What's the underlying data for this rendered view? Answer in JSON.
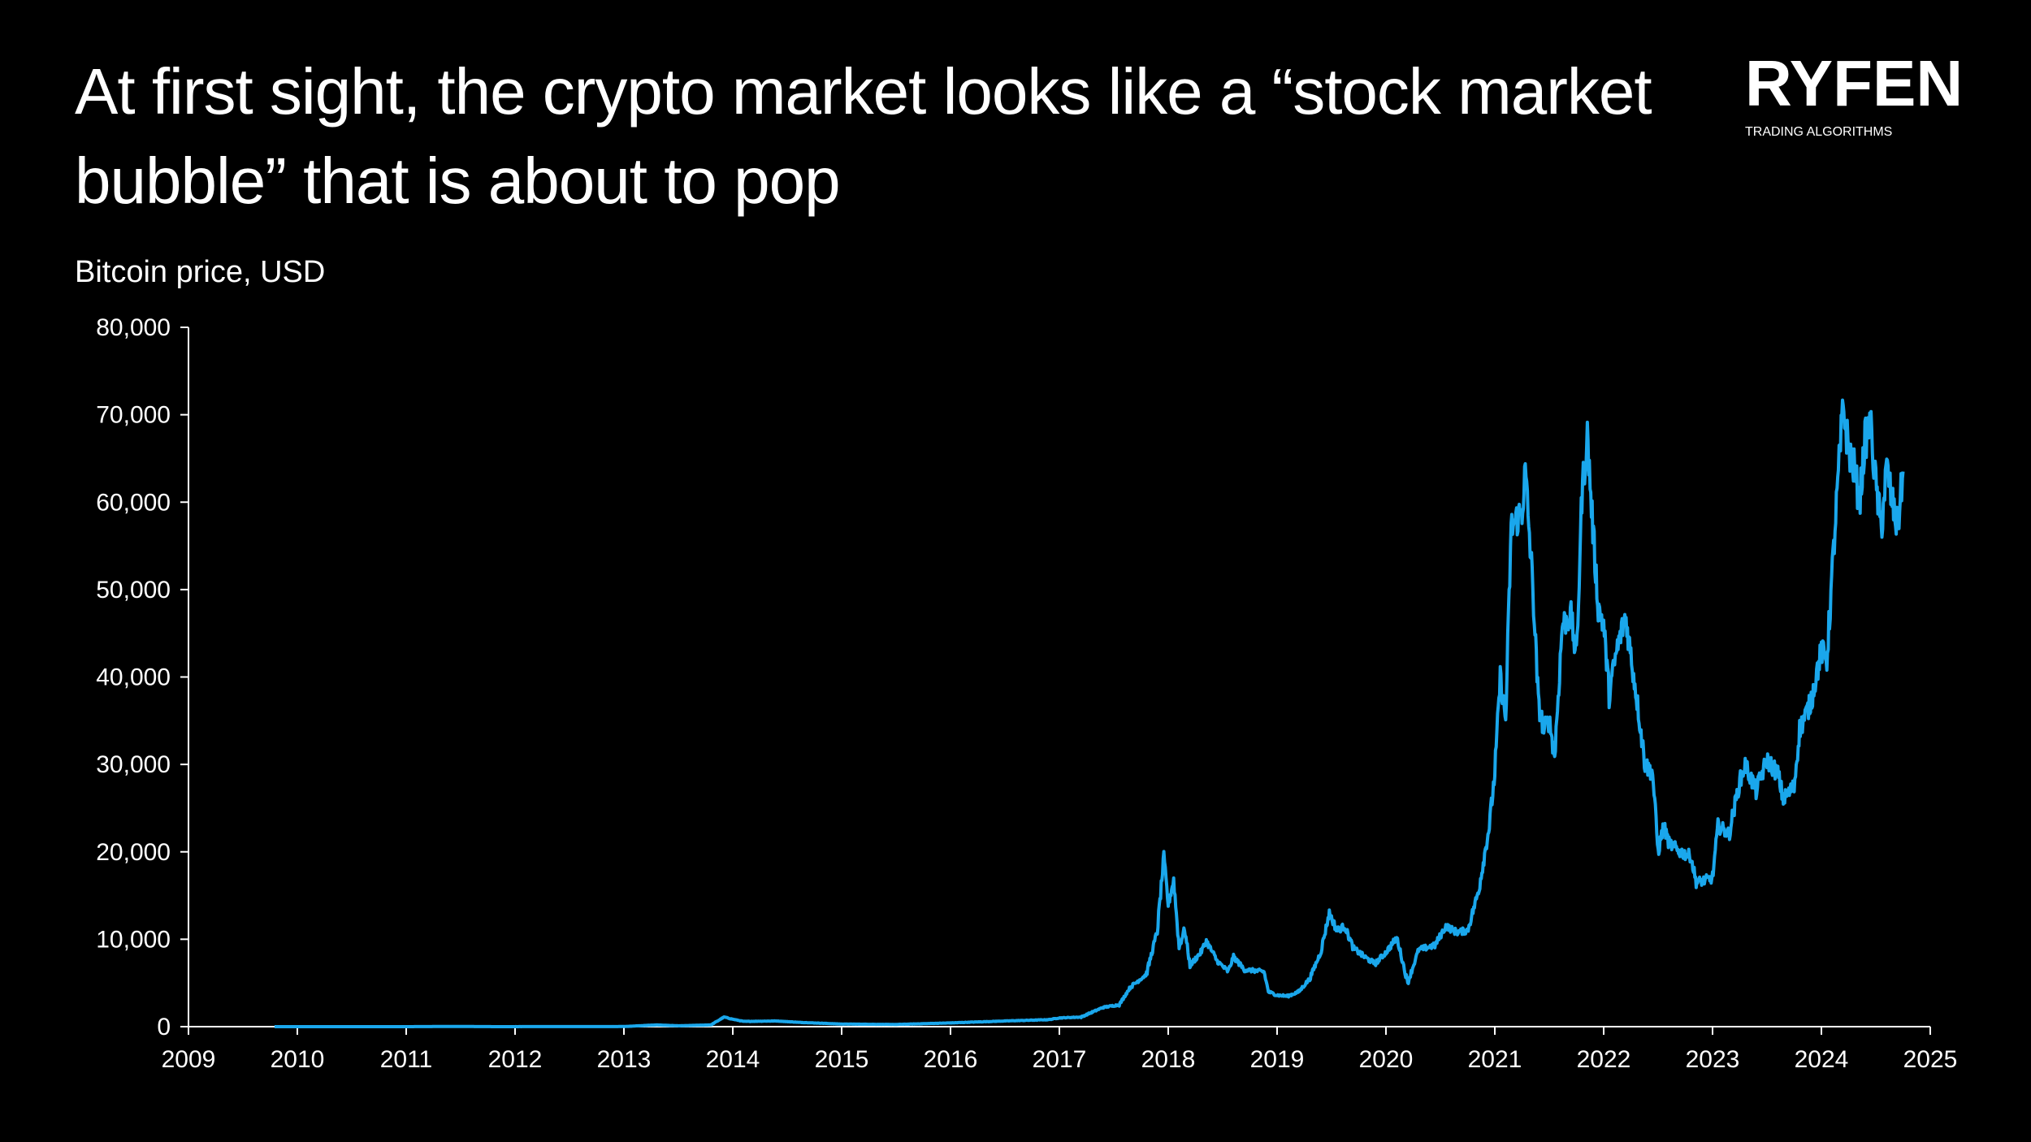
{
  "header": {
    "title": "At first sight, the crypto market looks like a “stock market bubble” that is about to pop"
  },
  "logo": {
    "name": "RYFEN",
    "tagline": "TRADING ALGORITHMS"
  },
  "colors": {
    "background": "#000000",
    "text": "#ffffff",
    "series": "#1aa7ec"
  },
  "chart_data": {
    "type": "line",
    "title": "At first sight, the crypto market looks like a “stock market bubble” that is about to pop",
    "subtitle": "Bitcoin price, USD",
    "xlabel": "",
    "ylabel": "",
    "xlim": [
      2009,
      2025
    ],
    "ylim": [
      0,
      80000
    ],
    "x_ticks": [
      2009,
      2010,
      2011,
      2012,
      2013,
      2014,
      2015,
      2016,
      2017,
      2018,
      2019,
      2020,
      2021,
      2022,
      2023,
      2024,
      2025
    ],
    "y_ticks": [
      0,
      10000,
      20000,
      30000,
      40000,
      50000,
      60000,
      70000,
      80000
    ],
    "x_tick_labels": [
      "2009",
      "2010",
      "2011",
      "2012",
      "2013",
      "2014",
      "2015",
      "2016",
      "2017",
      "2018",
      "2019",
      "2020",
      "2021",
      "2022",
      "2023",
      "2024",
      "2025"
    ],
    "y_tick_labels": [
      "0",
      "10,000",
      "20,000",
      "30,000",
      "40,000",
      "50,000",
      "60,000",
      "70,000",
      "80,000"
    ],
    "grid": false,
    "legend": "none",
    "series": [
      {
        "color": "#1aa7ec",
        "points": [
          [
            2009.79,
            0
          ],
          [
            2010.5,
            0
          ],
          [
            2011.0,
            1
          ],
          [
            2011.45,
            25
          ],
          [
            2011.8,
            3
          ],
          [
            2012.5,
            8
          ],
          [
            2013.0,
            15
          ],
          [
            2013.3,
            200
          ],
          [
            2013.5,
            100
          ],
          [
            2013.8,
            200
          ],
          [
            2013.92,
            1100
          ],
          [
            2014.0,
            850
          ],
          [
            2014.1,
            600
          ],
          [
            2014.4,
            650
          ],
          [
            2014.6,
            500
          ],
          [
            2015.0,
            300
          ],
          [
            2015.5,
            250
          ],
          [
            2016.0,
            430
          ],
          [
            2016.5,
            650
          ],
          [
            2016.9,
            800
          ],
          [
            2017.0,
            1000
          ],
          [
            2017.2,
            1100
          ],
          [
            2017.4,
            2200
          ],
          [
            2017.55,
            2500
          ],
          [
            2017.65,
            4500
          ],
          [
            2017.8,
            6000
          ],
          [
            2017.9,
            11000
          ],
          [
            2017.96,
            19400
          ],
          [
            2018.0,
            14000
          ],
          [
            2018.05,
            16800
          ],
          [
            2018.1,
            9000
          ],
          [
            2018.15,
            11200
          ],
          [
            2018.2,
            7000
          ],
          [
            2018.3,
            8500
          ],
          [
            2018.35,
            9800
          ],
          [
            2018.45,
            7500
          ],
          [
            2018.55,
            6300
          ],
          [
            2018.6,
            8000
          ],
          [
            2018.7,
            6500
          ],
          [
            2018.8,
            6400
          ],
          [
            2018.88,
            6300
          ],
          [
            2018.92,
            4000
          ],
          [
            2019.0,
            3600
          ],
          [
            2019.1,
            3500
          ],
          [
            2019.2,
            4000
          ],
          [
            2019.3,
            5500
          ],
          [
            2019.4,
            8500
          ],
          [
            2019.48,
            13000
          ],
          [
            2019.55,
            11000
          ],
          [
            2019.62,
            11500
          ],
          [
            2019.7,
            9000
          ],
          [
            2019.8,
            8000
          ],
          [
            2019.9,
            7200
          ],
          [
            2020.0,
            8500
          ],
          [
            2020.1,
            10200
          ],
          [
            2020.2,
            5000
          ],
          [
            2020.3,
            8800
          ],
          [
            2020.45,
            9300
          ],
          [
            2020.55,
            11500
          ],
          [
            2020.65,
            10800
          ],
          [
            2020.75,
            11000
          ],
          [
            2020.85,
            15500
          ],
          [
            2020.95,
            23000
          ],
          [
            2021.0,
            29000
          ],
          [
            2021.05,
            40000
          ],
          [
            2021.1,
            35000
          ],
          [
            2021.15,
            57000
          ],
          [
            2021.25,
            59000
          ],
          [
            2021.28,
            63500
          ],
          [
            2021.35,
            50000
          ],
          [
            2021.4,
            37000
          ],
          [
            2021.45,
            34000
          ],
          [
            2021.5,
            35000
          ],
          [
            2021.55,
            31000
          ],
          [
            2021.62,
            46000
          ],
          [
            2021.7,
            47000
          ],
          [
            2021.75,
            42000
          ],
          [
            2021.8,
            61000
          ],
          [
            2021.85,
            67500
          ],
          [
            2021.9,
            57000
          ],
          [
            2021.95,
            48000
          ],
          [
            2022.0,
            46000
          ],
          [
            2022.05,
            38000
          ],
          [
            2022.12,
            43000
          ],
          [
            2022.2,
            47000
          ],
          [
            2022.3,
            38000
          ],
          [
            2022.38,
            30000
          ],
          [
            2022.45,
            29000
          ],
          [
            2022.5,
            20000
          ],
          [
            2022.55,
            23000
          ],
          [
            2022.6,
            21000
          ],
          [
            2022.7,
            20000
          ],
          [
            2022.8,
            19500
          ],
          [
            2022.85,
            16500
          ],
          [
            2022.95,
            16800
          ],
          [
            2023.0,
            17000
          ],
          [
            2023.05,
            23000
          ],
          [
            2023.15,
            22000
          ],
          [
            2023.25,
            28000
          ],
          [
            2023.3,
            30000
          ],
          [
            2023.4,
            27000
          ],
          [
            2023.5,
            30500
          ],
          [
            2023.6,
            29000
          ],
          [
            2023.65,
            26000
          ],
          [
            2023.75,
            27500
          ],
          [
            2023.8,
            34000
          ],
          [
            2023.9,
            37000
          ],
          [
            2024.0,
            43000
          ],
          [
            2024.05,
            42000
          ],
          [
            2024.1,
            52000
          ],
          [
            2024.15,
            62000
          ],
          [
            2024.2,
            71000
          ],
          [
            2024.25,
            66000
          ],
          [
            2024.3,
            64000
          ],
          [
            2024.35,
            60000
          ],
          [
            2024.4,
            67000
          ],
          [
            2024.45,
            69000
          ],
          [
            2024.5,
            62000
          ],
          [
            2024.55,
            57000
          ],
          [
            2024.6,
            64000
          ],
          [
            2024.65,
            60000
          ],
          [
            2024.7,
            57000
          ],
          [
            2024.75,
            63500
          ]
        ]
      }
    ]
  }
}
